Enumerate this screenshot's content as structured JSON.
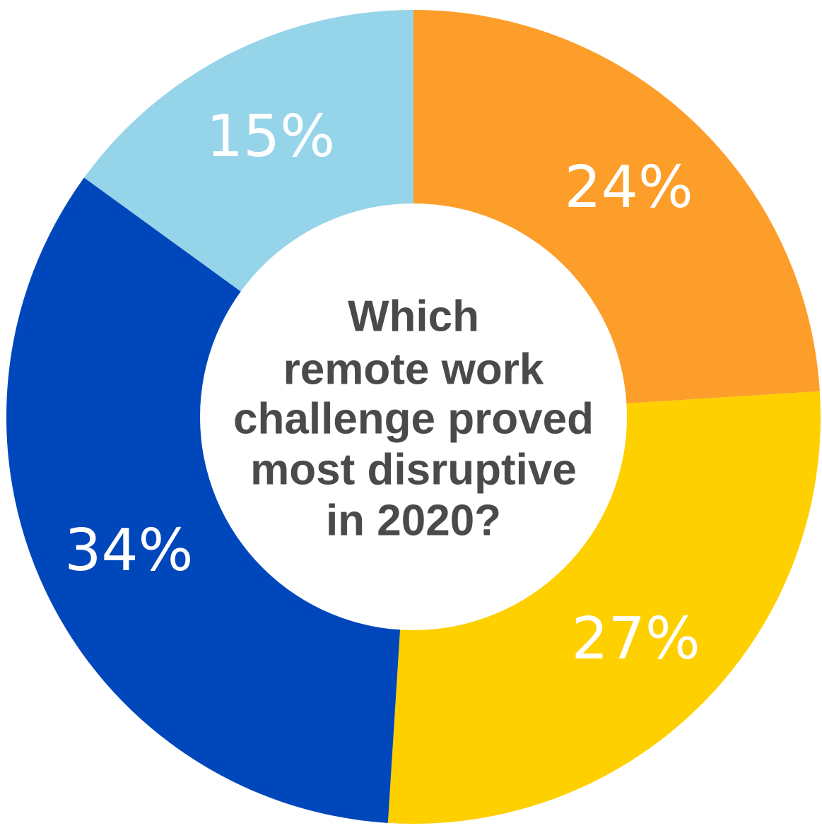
{
  "chart_data": {
    "type": "pie",
    "variant": "donut",
    "center_text_lines": [
      "Which",
      "remote work",
      "challenge proved",
      "most disruptive",
      "in 2020?"
    ],
    "values": [
      24,
      27,
      34,
      15
    ],
    "labels": [
      "24%",
      "27%",
      "34%",
      "15%"
    ],
    "colors": [
      "#fd9e2a",
      "#fed000",
      "#0047bb",
      "#96d4e9"
    ],
    "legend": "none"
  }
}
